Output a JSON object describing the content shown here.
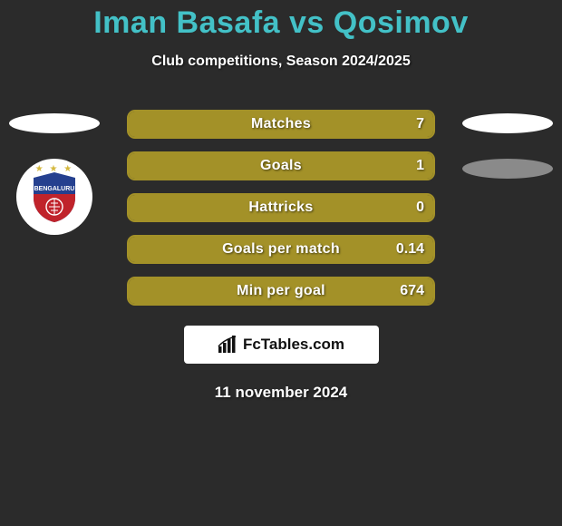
{
  "title": {
    "text": "Iman Basafa vs Qosimov",
    "color": "#43c1c7",
    "fontsize": 34
  },
  "subtitle": {
    "text": "Club competitions, Season 2024/2025",
    "fontsize": 16
  },
  "background_color": "#2b2b2b",
  "stats": {
    "bar_border_color": "#a39128",
    "bar_fill_color": "#a39128",
    "bar_bg_color": "#2b2b2b",
    "label_fontsize": 16,
    "value_fontsize": 16,
    "rows": [
      {
        "label": "Matches",
        "value_right": "7",
        "fill_pct": 100
      },
      {
        "label": "Goals",
        "value_right": "1",
        "fill_pct": 100
      },
      {
        "label": "Hattricks",
        "value_right": "0",
        "fill_pct": 100
      },
      {
        "label": "Goals per match",
        "value_right": "0.14",
        "fill_pct": 100
      },
      {
        "label": "Min per goal",
        "value_right": "674",
        "fill_pct": 100
      }
    ]
  },
  "left_side": {
    "ellipses": [
      {
        "color": "#ffffff"
      }
    ],
    "club": {
      "name": "BENGALURU",
      "shield_top": "#25408f",
      "shield_bottom": "#c0232b",
      "text_color": "#ffffff"
    }
  },
  "right_side": {
    "ellipses": [
      {
        "color": "#ffffff"
      },
      {
        "color": "#8a8a8a"
      }
    ]
  },
  "brand": {
    "text": "FcTables.com",
    "box_bg": "#ffffff",
    "text_color": "#111111",
    "icon_color": "#111111"
  },
  "date": {
    "text": "11 november 2024",
    "fontsize": 17
  }
}
